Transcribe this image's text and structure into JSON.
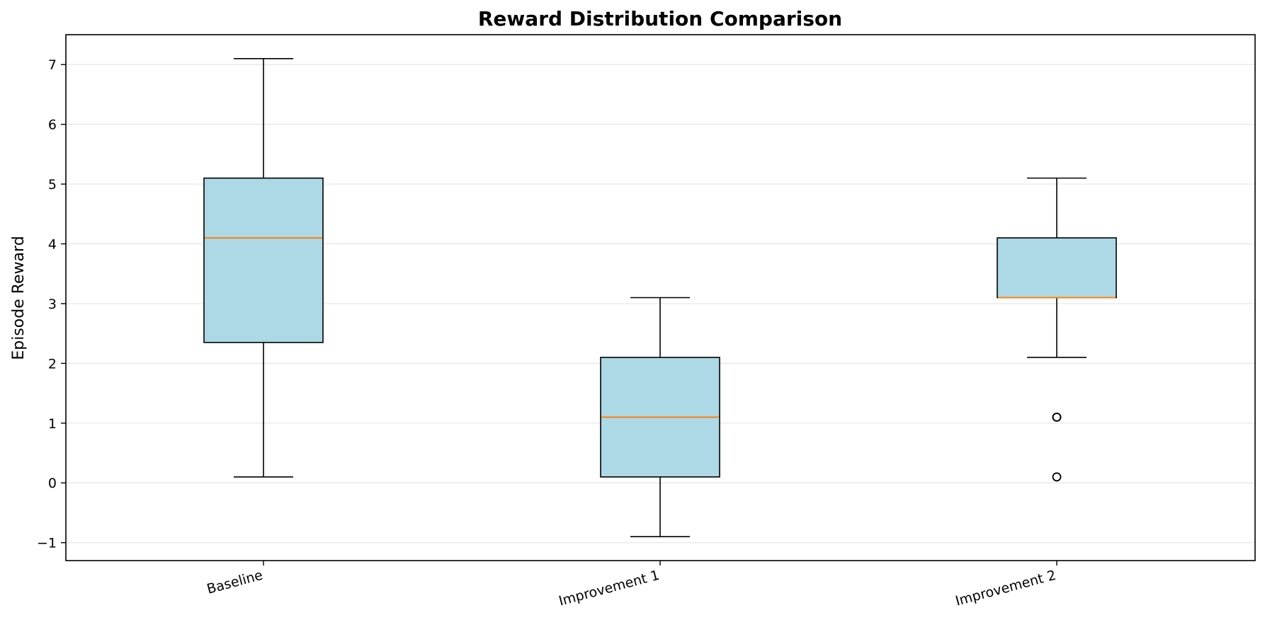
{
  "chart_data": {
    "type": "box",
    "title": "Reward Distribution Comparison",
    "xlabel": "",
    "ylabel": "Episode Reward",
    "ylim": [
      -1.3,
      7.5
    ],
    "yticks": [
      -1,
      0,
      1,
      2,
      3,
      4,
      5,
      6,
      7
    ],
    "ytick_labels": [
      "−1",
      "0",
      "1",
      "2",
      "3",
      "4",
      "5",
      "6",
      "7"
    ],
    "grid": "horizontal",
    "categories": [
      "Baseline",
      "Improvement 1",
      "Improvement 2"
    ],
    "boxes": [
      {
        "category": "Baseline",
        "whisker_low": 0.1,
        "q1": 2.35,
        "median": 4.1,
        "q3": 5.1,
        "whisker_high": 7.1,
        "outliers": []
      },
      {
        "category": "Improvement 1",
        "whisker_low": -0.9,
        "q1": 0.1,
        "median": 1.1,
        "q3": 2.1,
        "whisker_high": 3.1,
        "outliers": []
      },
      {
        "category": "Improvement 2",
        "whisker_low": 2.1,
        "q1": 3.1,
        "median": 3.1,
        "q3": 4.1,
        "whisker_high": 5.1,
        "outliers": [
          1.1,
          1.1,
          0.1
        ]
      }
    ],
    "colors": {
      "box_fill": "#add8e6",
      "median": "#ff7f0e",
      "edge": "#000000",
      "grid": "#e5e5e5"
    }
  }
}
